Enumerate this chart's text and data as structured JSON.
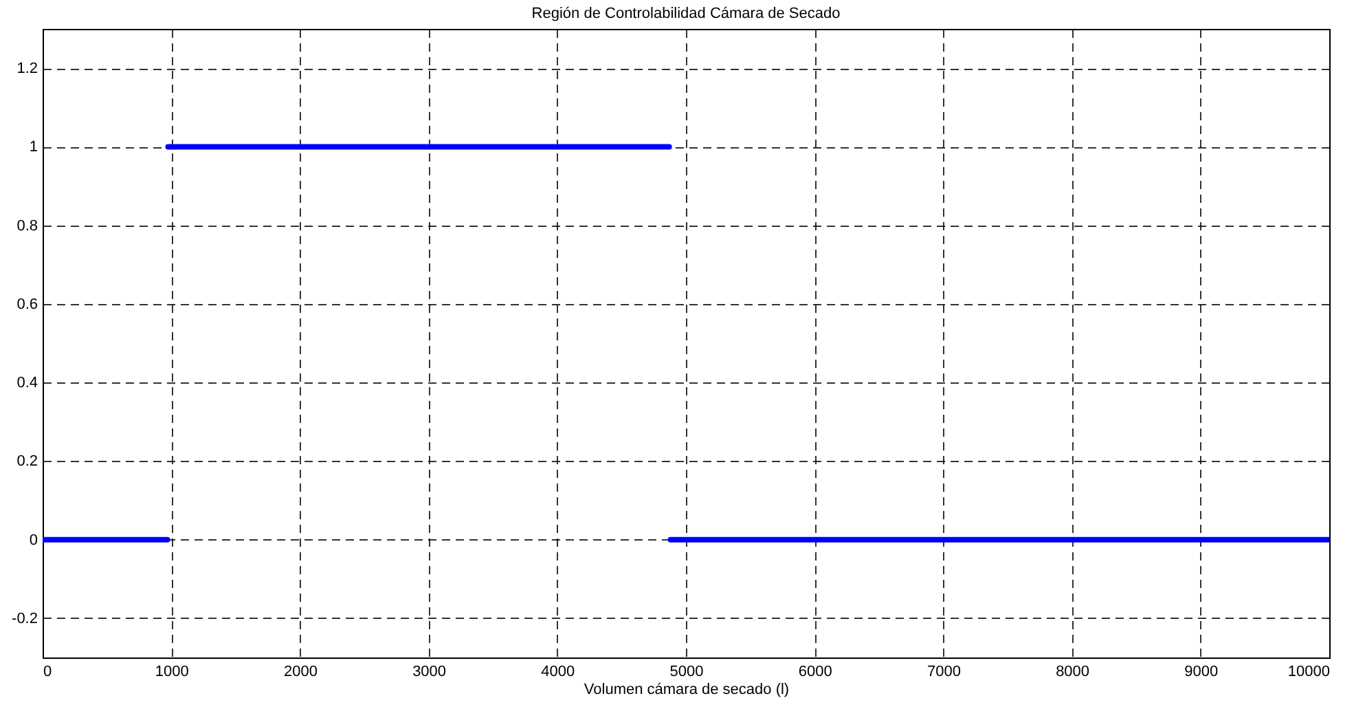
{
  "chart_data": {
    "type": "line",
    "title": "Región de Controlabilidad Cámara de Secado",
    "xlabel": "Volumen cámara de secado (l)",
    "x": [
      0,
      970,
      972,
      975,
      4870,
      4875,
      4880,
      10000
    ],
    "series": [
      {
        "color": "#0000ff",
        "values": [
          0,
          0,
          null,
          1,
          1,
          null,
          0,
          0
        ]
      }
    ],
    "xlim": [
      0,
      10000
    ],
    "xticks": [
      0,
      1000,
      2000,
      3000,
      4000,
      5000,
      6000,
      7000,
      8000,
      9000,
      10000
    ],
    "ylim": [
      -0.3,
      1.3
    ],
    "yticks": [
      -0.2,
      0,
      0.2,
      0.4,
      0.6,
      0.8,
      1,
      1.2
    ],
    "grid": true,
    "line_style": "solid",
    "marker": "none"
  }
}
